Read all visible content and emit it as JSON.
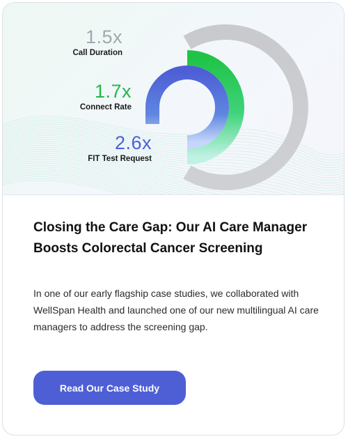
{
  "hero": {
    "stats": [
      {
        "value": "1.5x",
        "label": "Call Duration",
        "color": "#a3a6ab"
      },
      {
        "value": "1.7x",
        "label": "Connect Rate",
        "color": "#22b846"
      },
      {
        "value": "2.6x",
        "label": "FIT Test Request",
        "color": "#4e5fd6"
      }
    ],
    "ring_colors": {
      "outer": "#c9cacd",
      "middle": "#22c84a",
      "inner": "#4e5fd6",
      "accent_teal": "#7fe3c4"
    }
  },
  "article": {
    "title": "Closing the Care Gap: Our AI Care Manager Boosts Colorectal Cancer Screening",
    "description": "In one of our early flagship case studies, we collaborated with WellSpan Health and launched one of our new multilingual AI care managers to address the screening gap."
  },
  "cta": {
    "label": "Read Our Case Study",
    "color": "#4e5fd6"
  }
}
